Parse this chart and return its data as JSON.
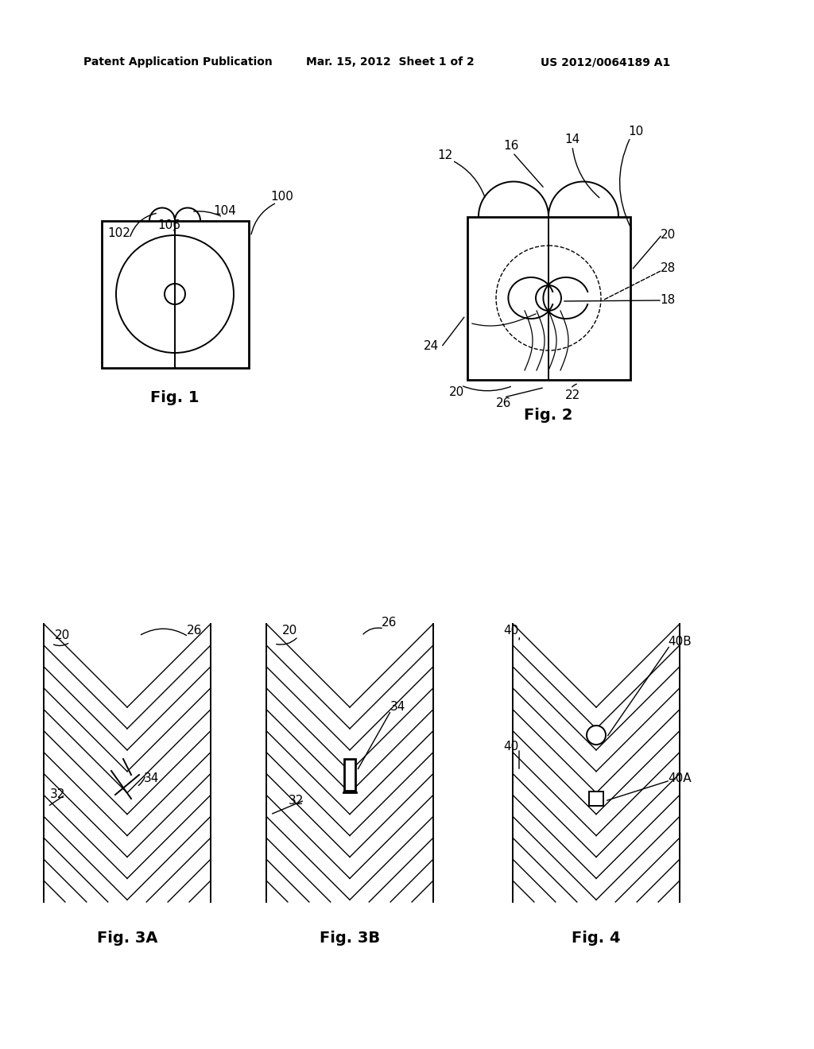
{
  "bg_color": "#ffffff",
  "header_line1": "Patent Application Publication",
  "header_line2": "Mar. 15, 2012  Sheet 1 of 2",
  "header_line3": "US 2012/0064189 A1",
  "fig1_title": "Fig. 1",
  "fig2_title": "Fig. 2",
  "fig3a_title": "Fig. 3A",
  "fig3b_title": "Fig. 3B",
  "fig4_title": "Fig. 4",
  "lc": "#000000",
  "lw": 1.4,
  "lw2": 2.0,
  "label_fs": 11,
  "fig_title_fs": 14
}
